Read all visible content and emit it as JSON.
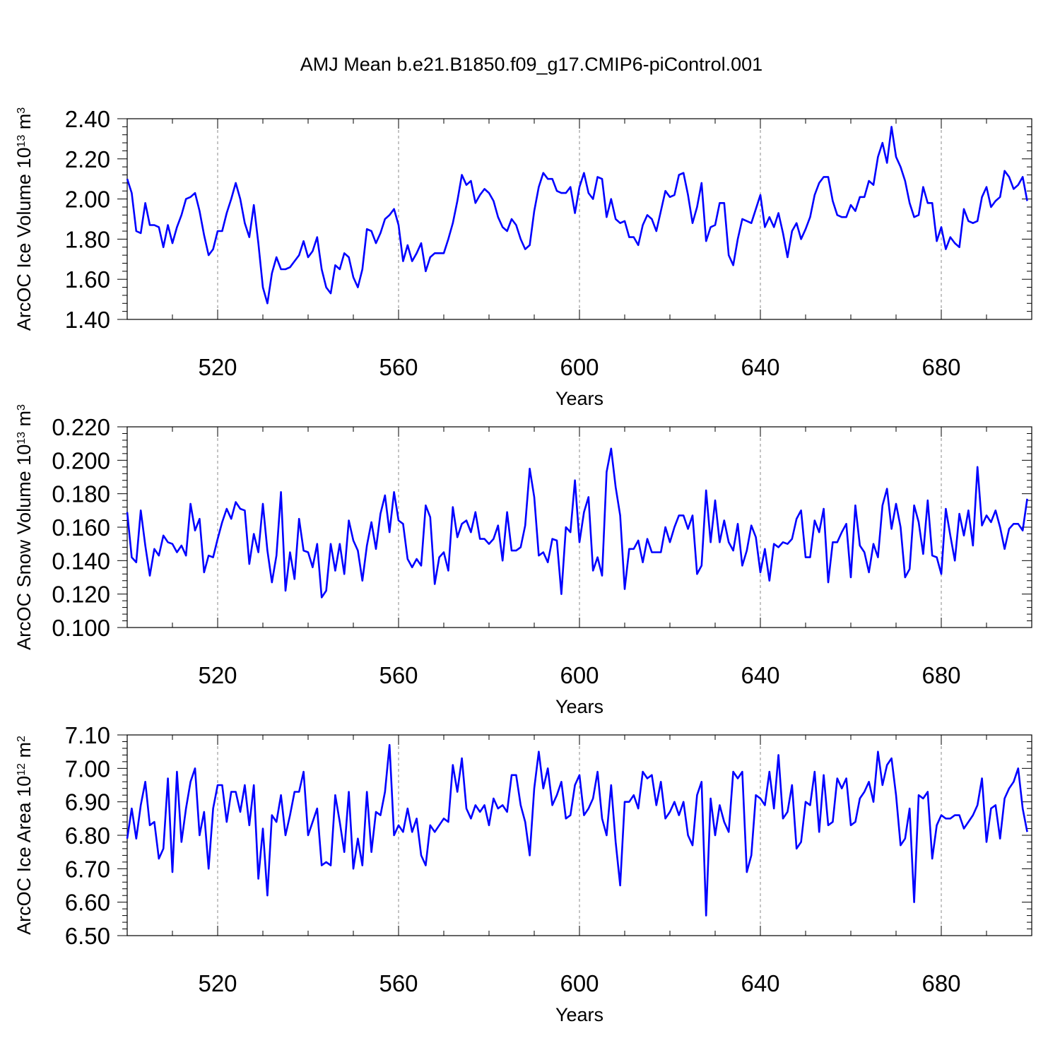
{
  "title": "AMJ Mean b.e21.B1850.f09_g17.CMIP6-piControl.001",
  "line_color": "#0000ff",
  "chart_data": [
    {
      "type": "line",
      "xlabel": "Years",
      "ylabel_text": "ArcOC Ice Volume 10",
      "ylabel_exp": "13",
      "ylabel_unit": " m",
      "ylabel_unit_exp": "3",
      "xlim": [
        500,
        700
      ],
      "ylim": [
        1.4,
        2.4
      ],
      "xticks": [
        520,
        560,
        600,
        640,
        680
      ],
      "xtick_labels": [
        "520",
        "560",
        "600",
        "640",
        "680"
      ],
      "yticks": [
        1.4,
        1.6,
        1.8,
        2.0,
        2.2,
        2.4
      ],
      "ytick_labels": [
        "1.40",
        "1.60",
        "1.80",
        "2.00",
        "2.20",
        "2.40"
      ],
      "grid": "vertical dashed at major x ticks",
      "x_start": 500,
      "y": [
        2.1,
        2.03,
        1.84,
        1.83,
        1.98,
        1.87,
        1.87,
        1.86,
        1.76,
        1.87,
        1.78,
        1.86,
        1.92,
        2.0,
        2.01,
        2.03,
        1.94,
        1.82,
        1.72,
        1.75,
        1.84,
        1.84,
        1.93,
        2.0,
        2.08,
        2.0,
        1.88,
        1.81,
        1.97,
        1.78,
        1.56,
        1.48,
        1.63,
        1.71,
        1.65,
        1.65,
        1.66,
        1.69,
        1.72,
        1.79,
        1.71,
        1.74,
        1.81,
        1.65,
        1.56,
        1.53,
        1.67,
        1.65,
        1.73,
        1.71,
        1.61,
        1.56,
        1.65,
        1.85,
        1.84,
        1.78,
        1.83,
        1.9,
        1.92,
        1.95,
        1.87,
        1.69,
        1.77,
        1.69,
        1.73,
        1.78,
        1.64,
        1.71,
        1.73,
        1.73,
        1.73,
        1.8,
        1.88,
        1.99,
        2.12,
        2.07,
        2.09,
        1.98,
        2.02,
        2.05,
        2.03,
        1.99,
        1.91,
        1.86,
        1.84,
        1.9,
        1.87,
        1.8,
        1.75,
        1.77,
        1.94,
        2.06,
        2.13,
        2.1,
        2.1,
        2.04,
        2.03,
        2.03,
        2.06,
        1.93,
        2.06,
        2.13,
        2.03,
        2.0,
        2.11,
        2.1,
        1.91,
        2.0,
        1.9,
        1.88,
        1.89,
        1.81,
        1.81,
        1.77,
        1.87,
        1.92,
        1.9,
        1.84,
        1.94,
        2.04,
        2.01,
        2.02,
        2.12,
        2.13,
        2.02,
        1.88,
        1.96,
        2.08,
        1.79,
        1.86,
        1.87,
        1.98,
        1.98,
        1.72,
        1.67,
        1.8,
        1.9,
        1.89,
        1.88,
        1.95,
        2.02,
        1.86,
        1.91,
        1.86,
        1.93,
        1.83,
        1.71,
        1.84,
        1.88,
        1.8,
        1.85,
        1.91,
        2.02,
        2.08,
        2.11,
        2.11,
        1.99,
        1.92,
        1.91,
        1.91,
        1.97,
        1.94,
        2.01,
        2.01,
        2.09,
        2.07,
        2.21,
        2.28,
        2.18,
        2.36,
        2.21,
        2.16,
        2.09,
        1.98,
        1.91,
        1.92,
        2.06,
        1.98,
        1.98,
        1.79,
        1.86,
        1.75,
        1.81,
        1.78,
        1.76,
        1.95,
        1.89,
        1.88,
        1.89,
        2.01,
        2.06,
        1.96,
        1.99,
        2.01,
        2.14,
        2.11,
        2.05,
        2.07,
        2.11,
        1.99
      ]
    },
    {
      "type": "line",
      "xlabel": "Years",
      "ylabel_text": "ArcOC Snow Volume 10",
      "ylabel_exp": "13",
      "ylabel_unit": " m",
      "ylabel_unit_exp": "3",
      "xlim": [
        500,
        700
      ],
      "ylim": [
        0.1,
        0.22
      ],
      "xticks": [
        520,
        560,
        600,
        640,
        680
      ],
      "xtick_labels": [
        "520",
        "560",
        "600",
        "640",
        "680"
      ],
      "yticks": [
        0.1,
        0.12,
        0.14,
        0.16,
        0.18,
        0.2,
        0.22
      ],
      "ytick_labels": [
        "0.100",
        "0.120",
        "0.140",
        "0.160",
        "0.180",
        "0.200",
        "0.220"
      ],
      "grid": "vertical dashed at major x ticks",
      "x_start": 500,
      "y": [
        0.169,
        0.142,
        0.139,
        0.17,
        0.149,
        0.131,
        0.147,
        0.143,
        0.155,
        0.151,
        0.15,
        0.145,
        0.149,
        0.143,
        0.174,
        0.158,
        0.165,
        0.133,
        0.143,
        0.142,
        0.153,
        0.163,
        0.171,
        0.165,
        0.175,
        0.171,
        0.17,
        0.138,
        0.156,
        0.145,
        0.174,
        0.146,
        0.127,
        0.143,
        0.181,
        0.122,
        0.145,
        0.129,
        0.165,
        0.146,
        0.145,
        0.136,
        0.15,
        0.118,
        0.122,
        0.15,
        0.134,
        0.15,
        0.132,
        0.164,
        0.152,
        0.146,
        0.128,
        0.149,
        0.163,
        0.147,
        0.168,
        0.179,
        0.157,
        0.181,
        0.164,
        0.162,
        0.141,
        0.136,
        0.141,
        0.137,
        0.173,
        0.166,
        0.126,
        0.142,
        0.145,
        0.134,
        0.172,
        0.154,
        0.162,
        0.164,
        0.157,
        0.169,
        0.153,
        0.153,
        0.15,
        0.153,
        0.161,
        0.14,
        0.169,
        0.146,
        0.146,
        0.148,
        0.161,
        0.195,
        0.178,
        0.143,
        0.145,
        0.139,
        0.153,
        0.152,
        0.12,
        0.16,
        0.157,
        0.188,
        0.151,
        0.169,
        0.178,
        0.134,
        0.142,
        0.131,
        0.193,
        0.207,
        0.184,
        0.167,
        0.123,
        0.147,
        0.147,
        0.152,
        0.139,
        0.153,
        0.145,
        0.145,
        0.145,
        0.16,
        0.151,
        0.16,
        0.167,
        0.167,
        0.159,
        0.167,
        0.132,
        0.137,
        0.182,
        0.151,
        0.176,
        0.151,
        0.164,
        0.151,
        0.146,
        0.162,
        0.137,
        0.146,
        0.161,
        0.154,
        0.133,
        0.147,
        0.128,
        0.15,
        0.148,
        0.151,
        0.15,
        0.153,
        0.165,
        0.17,
        0.142,
        0.142,
        0.164,
        0.157,
        0.171,
        0.127,
        0.151,
        0.151,
        0.157,
        0.162,
        0.13,
        0.173,
        0.149,
        0.145,
        0.133,
        0.15,
        0.142,
        0.173,
        0.183,
        0.159,
        0.174,
        0.16,
        0.13,
        0.135,
        0.173,
        0.163,
        0.144,
        0.176,
        0.143,
        0.142,
        0.132,
        0.171,
        0.155,
        0.14,
        0.168,
        0.155,
        0.17,
        0.149,
        0.196,
        0.161,
        0.167,
        0.163,
        0.17,
        0.16,
        0.147,
        0.159,
        0.162,
        0.162,
        0.158,
        0.177
      ]
    },
    {
      "type": "line",
      "xlabel": "Years",
      "ylabel_text": "ArcOC Ice Area 10",
      "ylabel_exp": "12",
      "ylabel_unit": " m",
      "ylabel_unit_exp": "2",
      "xlim": [
        500,
        700
      ],
      "ylim": [
        6.5,
        7.1
      ],
      "xticks": [
        520,
        560,
        600,
        640,
        680
      ],
      "xtick_labels": [
        "520",
        "560",
        "600",
        "640",
        "680"
      ],
      "yticks": [
        6.5,
        6.6,
        6.7,
        6.8,
        6.9,
        7.0,
        7.1
      ],
      "ytick_labels": [
        "6.50",
        "6.60",
        "6.70",
        "6.80",
        "6.90",
        "7.00",
        "7.10"
      ],
      "grid": "vertical dashed at major x ticks",
      "x_start": 500,
      "y": [
        6.79,
        6.88,
        6.79,
        6.89,
        6.96,
        6.83,
        6.84,
        6.73,
        6.76,
        6.97,
        6.69,
        6.99,
        6.78,
        6.88,
        6.96,
        7.0,
        6.8,
        6.87,
        6.7,
        6.88,
        6.95,
        6.95,
        6.84,
        6.93,
        6.93,
        6.87,
        6.95,
        6.83,
        6.95,
        6.67,
        6.82,
        6.62,
        6.86,
        6.84,
        6.92,
        6.8,
        6.86,
        6.93,
        6.93,
        6.99,
        6.8,
        6.84,
        6.88,
        6.71,
        6.72,
        6.71,
        6.92,
        6.84,
        6.75,
        6.93,
        6.7,
        6.79,
        6.71,
        6.93,
        6.75,
        6.87,
        6.86,
        6.93,
        7.07,
        6.8,
        6.83,
        6.81,
        6.88,
        6.81,
        6.85,
        6.74,
        6.71,
        6.83,
        6.81,
        6.83,
        6.85,
        6.84,
        7.01,
        6.93,
        7.03,
        6.88,
        6.85,
        6.89,
        6.87,
        6.89,
        6.83,
        6.91,
        6.88,
        6.89,
        6.87,
        6.98,
        6.98,
        6.89,
        6.84,
        6.74,
        6.94,
        7.05,
        6.94,
        7.0,
        6.89,
        6.92,
        6.96,
        6.85,
        6.86,
        6.95,
        6.98,
        6.86,
        6.88,
        6.91,
        6.99,
        6.85,
        6.8,
        6.95,
        6.78,
        6.65,
        6.9,
        6.9,
        6.92,
        6.88,
        6.99,
        6.97,
        6.98,
        6.89,
        6.96,
        6.85,
        6.87,
        6.9,
        6.86,
        6.9,
        6.8,
        6.77,
        6.92,
        6.96,
        6.56,
        6.91,
        6.8,
        6.89,
        6.84,
        6.81,
        6.99,
        6.97,
        6.99,
        6.69,
        6.74,
        6.92,
        6.91,
        6.89,
        6.99,
        6.88,
        7.04,
        6.85,
        6.87,
        6.95,
        6.76,
        6.78,
        6.9,
        6.89,
        6.99,
        6.81,
        6.98,
        6.83,
        6.84,
        6.97,
        6.94,
        6.97,
        6.83,
        6.84,
        6.91,
        6.93,
        6.96,
        6.9,
        7.05,
        6.95,
        7.01,
        7.03,
        6.92,
        6.77,
        6.79,
        6.88,
        6.6,
        6.92,
        6.91,
        6.93,
        6.73,
        6.83,
        6.86,
        6.85,
        6.85,
        6.86,
        6.86,
        6.82,
        6.84,
        6.86,
        6.89,
        6.97,
        6.78,
        6.88,
        6.89,
        6.79,
        6.91,
        6.94,
        6.96,
        7.0,
        6.88,
        6.81
      ]
    }
  ]
}
